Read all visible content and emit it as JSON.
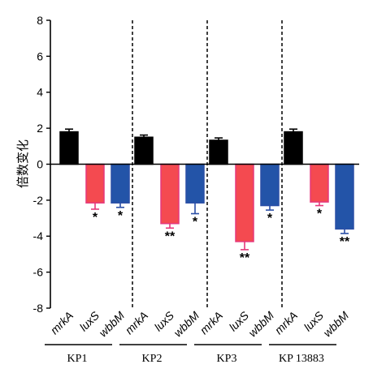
{
  "chart_data": {
    "type": "bar",
    "title": "",
    "xlabel": "",
    "ylabel": "倍数变化",
    "ylim": [
      -8,
      8
    ],
    "yticks": [
      8,
      6,
      4,
      2,
      0,
      -2,
      -4,
      -6,
      -8
    ],
    "grid": false,
    "legend": "none",
    "colors": {
      "mrkA": {
        "fill": "#000000",
        "stroke": "#000000"
      },
      "luxS": {
        "fill": "#f44a50",
        "stroke": "#e5387c"
      },
      "wbbM": {
        "fill": "#2354a8",
        "stroke": "#2a4ea6"
      }
    },
    "groups": [
      {
        "label": "KP1",
        "bars": [
          {
            "gene": "mrkA",
            "value": 1.8,
            "error": 0.15
          },
          {
            "gene": "luxS",
            "value": -2.15,
            "error": 0.35,
            "sig": "*"
          },
          {
            "gene": "wbbM",
            "value": -2.15,
            "error": 0.25,
            "sig": "*"
          }
        ]
      },
      {
        "label": "KP2",
        "bars": [
          {
            "gene": "mrkA",
            "value": 1.5,
            "error": 0.12
          },
          {
            "gene": "luxS",
            "value": -3.3,
            "error": 0.25,
            "sig": "**"
          },
          {
            "gene": "wbbM",
            "value": -2.15,
            "error": 0.6,
            "sig": "*"
          }
        ]
      },
      {
        "label": "KP3",
        "bars": [
          {
            "gene": "mrkA",
            "value": 1.33,
            "error": 0.13
          },
          {
            "gene": "luxS",
            "value": -4.3,
            "error": 0.45,
            "sig": "**"
          },
          {
            "gene": "wbbM",
            "value": -2.3,
            "error": 0.25,
            "sig": "*"
          }
        ]
      },
      {
        "label": "KP 13883",
        "bars": [
          {
            "gene": "mrkA",
            "value": 1.8,
            "error": 0.15
          },
          {
            "gene": "luxS",
            "value": -2.1,
            "error": 0.2,
            "sig": "*"
          },
          {
            "gene": "wbbM",
            "value": -3.6,
            "error": 0.25,
            "sig": "**"
          }
        ]
      }
    ]
  }
}
